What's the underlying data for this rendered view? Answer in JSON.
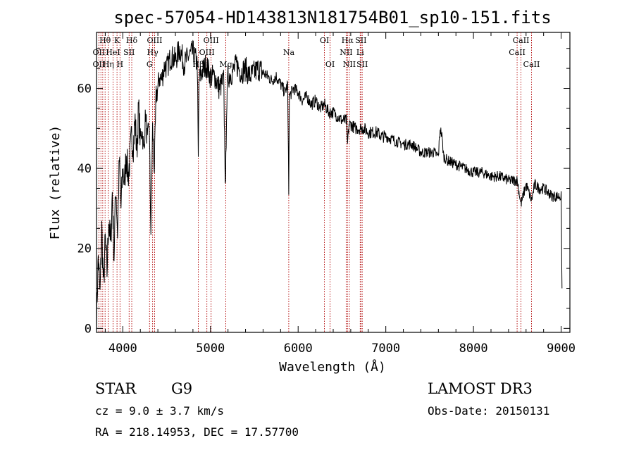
{
  "chart_data": {
    "type": "line",
    "title": "spec-57054-HD143813N181754B01_sp10-151.fits",
    "xlabel": "Wavelength (Å)",
    "ylabel": "Flux (relative)",
    "xlim": [
      3700,
      9100
    ],
    "ylim": [
      -1,
      74
    ],
    "xticks": [
      4000,
      5000,
      6000,
      7000,
      8000,
      9000
    ],
    "yticks": [
      0,
      20,
      40,
      60
    ],
    "series": [
      {
        "name": "flux",
        "x": [
          3700,
          3720,
          3740,
          3760,
          3780,
          3800,
          3820,
          3840,
          3860,
          3880,
          3900,
          3920,
          3940,
          3960,
          3980,
          4000,
          4020,
          4040,
          4060,
          4080,
          4100,
          4120,
          4140,
          4160,
          4180,
          4200,
          4220,
          4240,
          4260,
          4280,
          4300,
          4320,
          4340,
          4360,
          4380,
          4400,
          4420,
          4440,
          4460,
          4480,
          4500,
          4550,
          4600,
          4650,
          4700,
          4750,
          4800,
          4850,
          4861,
          4870,
          4900,
          4950,
          5000,
          5050,
          5100,
          5150,
          5172,
          5183,
          5200,
          5250,
          5300,
          5350,
          5400,
          5450,
          5500,
          5550,
          5600,
          5650,
          5700,
          5750,
          5800,
          5850,
          5880,
          5893,
          5900,
          5950,
          6000,
          6050,
          6100,
          6150,
          6200,
          6250,
          6300,
          6350,
          6400,
          6450,
          6500,
          6550,
          6563,
          6580,
          6600,
          6650,
          6700,
          6750,
          6800,
          6850,
          6900,
          6950,
          7000,
          7100,
          7200,
          7300,
          7400,
          7500,
          7550,
          7600,
          7620,
          7640,
          7660,
          7700,
          7800,
          7900,
          8000,
          8100,
          8200,
          8300,
          8400,
          8500,
          8542,
          8600,
          8662,
          8700,
          8750,
          8800,
          8850,
          8900,
          8950,
          9000,
          9010
        ],
        "values": [
          2,
          18,
          8,
          25,
          10,
          22,
          14,
          28,
          20,
          34,
          18,
          36,
          24,
          42,
          30,
          40,
          36,
          44,
          38,
          42,
          48,
          46,
          52,
          44,
          55,
          47,
          50,
          44,
          54,
          46,
          52,
          24,
          50,
          40,
          58,
          60,
          63,
          62,
          64,
          66,
          65,
          68,
          67,
          70,
          66,
          68,
          69,
          66,
          42,
          62,
          64,
          66,
          63,
          63,
          60,
          62,
          34,
          55,
          63,
          64,
          66,
          64,
          65,
          63,
          64,
          65,
          64,
          63,
          62,
          63,
          61,
          59,
          61,
          34,
          58,
          60,
          59,
          57,
          58,
          56,
          57,
          55,
          56,
          54,
          54,
          53,
          52,
          52,
          46,
          51,
          51,
          50,
          50,
          50,
          49,
          49,
          49,
          48,
          48,
          47,
          46,
          46,
          44,
          44,
          44,
          43,
          50,
          48,
          43,
          42,
          41,
          40,
          39,
          39,
          38,
          38,
          37,
          37,
          31,
          36,
          32,
          36,
          35,
          35,
          34,
          33,
          33,
          33,
          10
        ]
      }
    ],
    "line_labels": [
      {
        "name": "Hθ",
        "wavelength": 3798,
        "row": 1
      },
      {
        "name": "OII",
        "wavelength": 3727,
        "row": 2
      },
      {
        "name": "OII",
        "wavelength": 3727,
        "row": 3
      },
      {
        "name": "K",
        "wavelength": 3934,
        "row": 1
      },
      {
        "name": "HeI",
        "wavelength": 3889,
        "row": 2
      },
      {
        "name": "Hη",
        "wavelength": 3835,
        "row": 3
      },
      {
        "name": "Hδ",
        "wavelength": 4102,
        "row": 1
      },
      {
        "name": "SII",
        "wavelength": 4072,
        "row": 2
      },
      {
        "name": "H",
        "wavelength": 3968,
        "row": 3
      },
      {
        "name": "OIII",
        "wavelength": 4363,
        "row": 1
      },
      {
        "name": "Hγ",
        "wavelength": 4340,
        "row": 2
      },
      {
        "name": "G",
        "wavelength": 4305,
        "row": 3
      },
      {
        "name": "OIII",
        "wavelength": 5007,
        "row": 1
      },
      {
        "name": "OIII",
        "wavelength": 4959,
        "row": 2
      },
      {
        "name": "Hβ",
        "wavelength": 4861,
        "row": 3
      },
      {
        "name": "Mg",
        "wavelength": 5175,
        "row": 3
      },
      {
        "name": "Na",
        "wavelength": 5893,
        "row": 2
      },
      {
        "name": "OI",
        "wavelength": 6300,
        "row": 1
      },
      {
        "name": "OI",
        "wavelength": 6364,
        "row": 3
      },
      {
        "name": "Hα",
        "wavelength": 6563,
        "row": 1
      },
      {
        "name": "SII",
        "wavelength": 6716,
        "row": 1
      },
      {
        "name": "NII",
        "wavelength": 6548,
        "row": 2
      },
      {
        "name": "Li",
        "wavelength": 6708,
        "row": 2
      },
      {
        "name": "NII",
        "wavelength": 6584,
        "row": 3
      },
      {
        "name": "SII",
        "wavelength": 6731,
        "row": 3
      },
      {
        "name": "CaII",
        "wavelength": 8542,
        "row": 1
      },
      {
        "name": "CaII",
        "wavelength": 8498,
        "row": 2
      },
      {
        "name": "CaII",
        "wavelength": 8662,
        "row": 3
      }
    ],
    "marker_wavelengths": [
      3727,
      3750,
      3771,
      3798,
      3835,
      3889,
      3934,
      3968,
      4072,
      4102,
      4305,
      4340,
      4363,
      4861,
      4959,
      5007,
      5175,
      5893,
      6300,
      6364,
      6548,
      6563,
      6584,
      6708,
      6716,
      6731,
      8498,
      8542,
      8662
    ]
  },
  "info": {
    "object_class": "STAR",
    "subclass": "G9",
    "survey": "LAMOST DR3",
    "redshift_line": "cz = 9.0 ± 3.7 km/s",
    "obs_date": "Obs-Date: 20150131",
    "coords": "RA = 218.14953, DEC =  17.57700"
  },
  "colors": {
    "spectrum": "#000000",
    "markers": "#b00000",
    "axes": "#000000"
  }
}
